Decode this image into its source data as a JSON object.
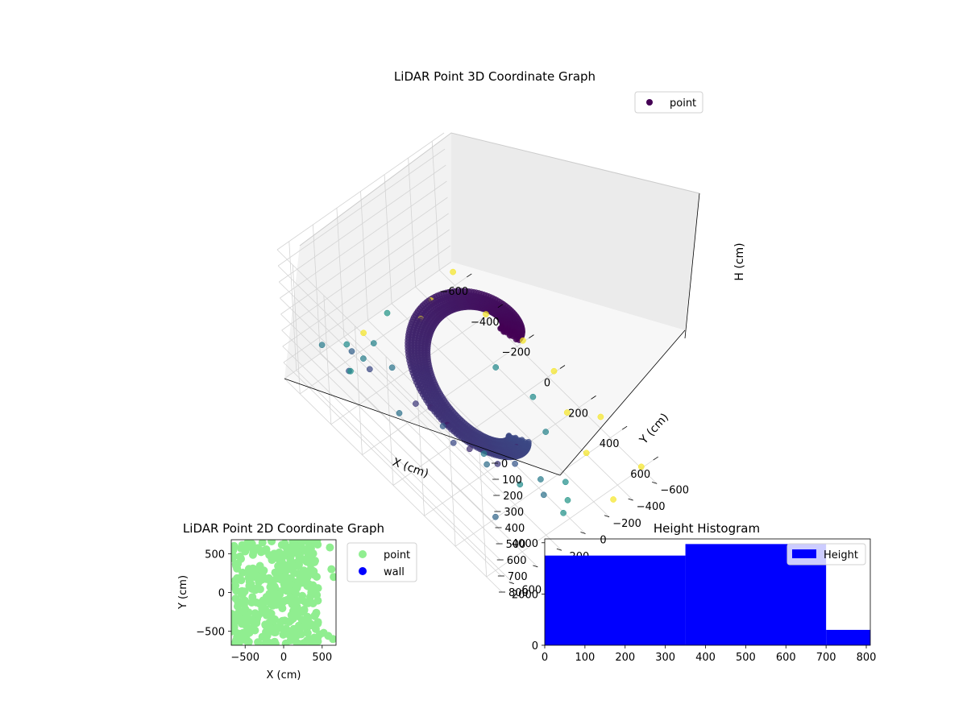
{
  "colors": {
    "dark_point": "#440154",
    "mid_point": "#3b528b",
    "teal_point": "#21918c",
    "yellow_point": "#fde725",
    "light_green": "#90ee90",
    "wall_blue": "#0000ff",
    "hist_blue": "#0000ff"
  },
  "chart_data": [
    {
      "type": "scatter",
      "title": "LiDAR Point 3D Coordinate Graph",
      "xlabel": "X (cm)",
      "ylabel": "Y (cm)",
      "zlabel": "H (cm)",
      "xlim": [
        -700,
        700
      ],
      "ylim": [
        -700,
        700
      ],
      "zlim": [
        0,
        800
      ],
      "z_inverted": true,
      "x_ticks": [
        -600,
        -400,
        -200,
        0,
        200,
        400,
        600
      ],
      "y_ticks": [
        -600,
        -400,
        -200,
        0,
        200,
        400,
        600
      ],
      "z_ticks": [
        0,
        100,
        200,
        300,
        400,
        500,
        600,
        700,
        800
      ],
      "x_tick_labels": [
        "−600",
        "−400",
        "−200",
        "0",
        "200",
        "400",
        "600"
      ],
      "y_tick_labels": [
        "−600",
        "−400",
        "−200",
        "0",
        "200",
        "400",
        "600"
      ],
      "z_tick_labels": [
        "0",
        "100",
        "200",
        "300",
        "400",
        "500",
        "600",
        "700",
        "800"
      ],
      "legend": {
        "placement": "top-right",
        "entries": [
          "point"
        ]
      },
      "colormap": "viridis (by height)",
      "grid": true,
      "series": [
        {
          "name": "point",
          "structure": "helical ramp",
          "helix_center": [
            -20,
            30
          ],
          "helix_radius_range": [
            200,
            300
          ],
          "helix_angle_range_deg": [
            -40,
            340
          ],
          "helix_height_range": [
            780,
            50
          ],
          "extra_points": [
            [
              600,
              400,
              150
            ],
            [
              550,
              500,
              250
            ],
            [
              450,
              600,
              200
            ],
            [
              350,
              650,
              120
            ],
            [
              500,
              300,
              400
            ],
            [
              600,
              200,
              550
            ],
            [
              300,
              550,
              330
            ],
            [
              200,
              600,
              180
            ],
            [
              450,
              450,
              300
            ],
            [
              600,
              600,
              480
            ],
            [
              -200,
              600,
              320
            ],
            [
              -400,
              500,
              450
            ],
            [
              -600,
              300,
              700
            ],
            [
              -650,
              100,
              780
            ],
            [
              -500,
              200,
              650
            ],
            [
              100,
              600,
              250
            ],
            [
              -300,
              650,
              400
            ],
            [
              150,
              450,
              420
            ],
            [
              350,
              350,
              520
            ],
            [
              500,
              100,
              600
            ],
            [
              -100,
              500,
              550
            ],
            [
              -600,
              500,
              600
            ],
            [
              250,
              250,
              600
            ],
            [
              400,
              150,
              700
            ],
            [
              550,
              -50,
              760
            ],
            [
              200,
              -500,
              780
            ],
            [
              400,
              -400,
              790
            ],
            [
              -600,
              -400,
              790
            ],
            [
              -400,
              -600,
              790
            ],
            [
              0,
              -650,
              790
            ],
            [
              600,
              -600,
              790
            ],
            [
              -650,
              -650,
              790
            ],
            [
              -200,
              -650,
              790
            ],
            [
              300,
              -650,
              790
            ],
            [
              650,
              -300,
              790
            ],
            [
              -500,
              400,
              720
            ],
            [
              -650,
              -100,
              760
            ],
            [
              -550,
              -250,
              780
            ],
            [
              100,
              -350,
              700
            ],
            [
              -100,
              -300,
              680
            ],
            [
              300,
              -200,
              650
            ],
            [
              500,
              -100,
              720
            ],
            [
              600,
              50,
              740
            ],
            [
              -300,
              300,
              560
            ],
            [
              -450,
              350,
              620
            ]
          ]
        }
      ]
    },
    {
      "type": "scatter",
      "title": "LiDAR Point 2D Coordinate Graph",
      "xlabel": "X (cm)",
      "ylabel": "Y (cm)",
      "xlim": [
        -680,
        680
      ],
      "ylim": [
        -680,
        680
      ],
      "x_ticks": [
        -500,
        0,
        500
      ],
      "y_ticks": [
        -500,
        0,
        500
      ],
      "x_tick_labels": [
        "−500",
        "0",
        "500"
      ],
      "y_tick_labels": [
        "−500",
        "0",
        "500"
      ],
      "legend": {
        "placement": "outside-right",
        "entries": [
          "point",
          "wall"
        ]
      },
      "series": [
        {
          "name": "point",
          "color": "#90ee90",
          "region": "dense cloud x -650..450, y -680..680"
        },
        {
          "name": "wall",
          "color": "#0000ff",
          "points": []
        }
      ]
    },
    {
      "type": "bar",
      "title": "Height Histogram",
      "xlabel": "",
      "ylabel": "",
      "xlim": [
        0,
        810
      ],
      "ylim": [
        0,
        4150
      ],
      "x_ticks": [
        0,
        100,
        200,
        300,
        400,
        500,
        600,
        700,
        800
      ],
      "y_ticks": [
        0,
        2000,
        4000
      ],
      "x_tick_labels": [
        "0",
        "100",
        "200",
        "300",
        "400",
        "500",
        "600",
        "700",
        "800"
      ],
      "y_tick_labels": [
        "0",
        "2000",
        "4000"
      ],
      "legend": {
        "placement": "top-right",
        "entries": [
          "Height"
        ]
      },
      "series": [
        {
          "name": "Height",
          "color": "#0000ff",
          "bins": [
            {
              "x0": 0,
              "x1": 350,
              "count": 3500
            },
            {
              "x0": 350,
              "x1": 700,
              "count": 3950
            },
            {
              "x0": 700,
              "x1": 810,
              "count": 600
            }
          ]
        }
      ]
    }
  ]
}
